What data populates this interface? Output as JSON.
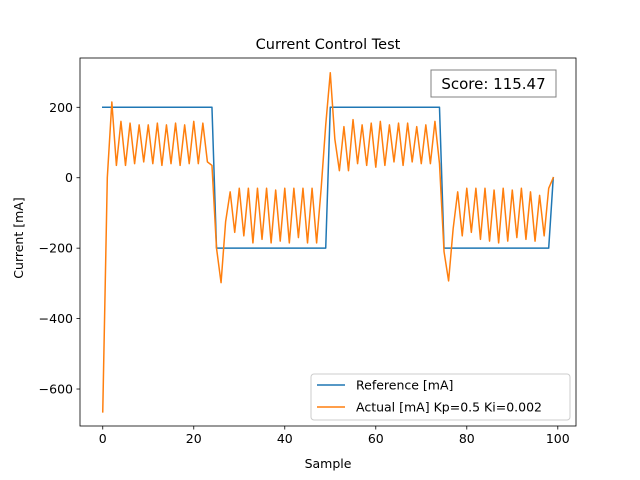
{
  "chart_data": {
    "type": "line",
    "title": "Current Control Test",
    "xlabel": "Sample",
    "ylabel": "Current [mA]",
    "xlim": [
      -5,
      104
    ],
    "ylim": [
      -705,
      340
    ],
    "x_ticks": [
      0,
      20,
      40,
      60,
      80,
      100
    ],
    "y_ticks": [
      -600,
      -400,
      -200,
      0,
      200
    ],
    "x_tick_labels": [
      "0",
      "20",
      "40",
      "60",
      "80",
      "100"
    ],
    "y_tick_labels": [
      "−600",
      "−400",
      "−200",
      "0",
      "200"
    ],
    "grid": false,
    "legend_position": "lower-right",
    "annotation": "Score: 115.47",
    "series": [
      {
        "name": "Reference [mA]",
        "color": "#1f77b4",
        "x": [
          0,
          24,
          25,
          49,
          50,
          74,
          75,
          98,
          99
        ],
        "y": [
          200,
          200,
          -200,
          -200,
          200,
          200,
          -200,
          -200,
          0
        ]
      },
      {
        "name": "Actual [mA] Kp=0.5 Ki=0.002",
        "color": "#ff7f0e",
        "x": [
          0,
          1,
          2,
          3,
          4,
          5,
          6,
          7,
          8,
          9,
          10,
          11,
          12,
          13,
          14,
          15,
          16,
          17,
          18,
          19,
          20,
          21,
          22,
          23,
          24,
          25,
          26,
          27,
          28,
          29,
          30,
          31,
          32,
          33,
          34,
          35,
          36,
          37,
          38,
          39,
          40,
          41,
          42,
          43,
          44,
          45,
          46,
          47,
          48,
          49,
          50,
          51,
          52,
          53,
          54,
          55,
          56,
          57,
          58,
          59,
          60,
          61,
          62,
          63,
          64,
          65,
          66,
          67,
          68,
          69,
          70,
          71,
          72,
          73,
          74,
          75,
          76,
          77,
          78,
          79,
          80,
          81,
          82,
          83,
          84,
          85,
          86,
          87,
          88,
          89,
          90,
          91,
          92,
          93,
          94,
          95,
          96,
          97,
          98,
          99
        ],
        "y": [
          -665,
          0,
          215,
          35,
          160,
          35,
          155,
          40,
          150,
          45,
          150,
          40,
          155,
          35,
          150,
          40,
          155,
          35,
          150,
          40,
          160,
          40,
          155,
          45,
          35,
          -200,
          -298,
          -125,
          -40,
          -155,
          -30,
          -165,
          -30,
          -185,
          -30,
          -175,
          -30,
          -185,
          -35,
          -180,
          -30,
          -185,
          -30,
          -170,
          -30,
          -185,
          -30,
          -185,
          -30,
          150,
          298,
          110,
          20,
          145,
          20,
          165,
          40,
          150,
          35,
          155,
          30,
          160,
          35,
          150,
          45,
          155,
          35,
          155,
          45,
          145,
          40,
          150,
          40,
          160,
          40,
          -210,
          -293,
          -145,
          -40,
          -165,
          -30,
          -155,
          -30,
          -175,
          -30,
          -180,
          -35,
          -185,
          -30,
          -180,
          -35,
          -170,
          -30,
          -175,
          -40,
          -180,
          -50,
          -165,
          -30,
          0
        ]
      }
    ]
  }
}
